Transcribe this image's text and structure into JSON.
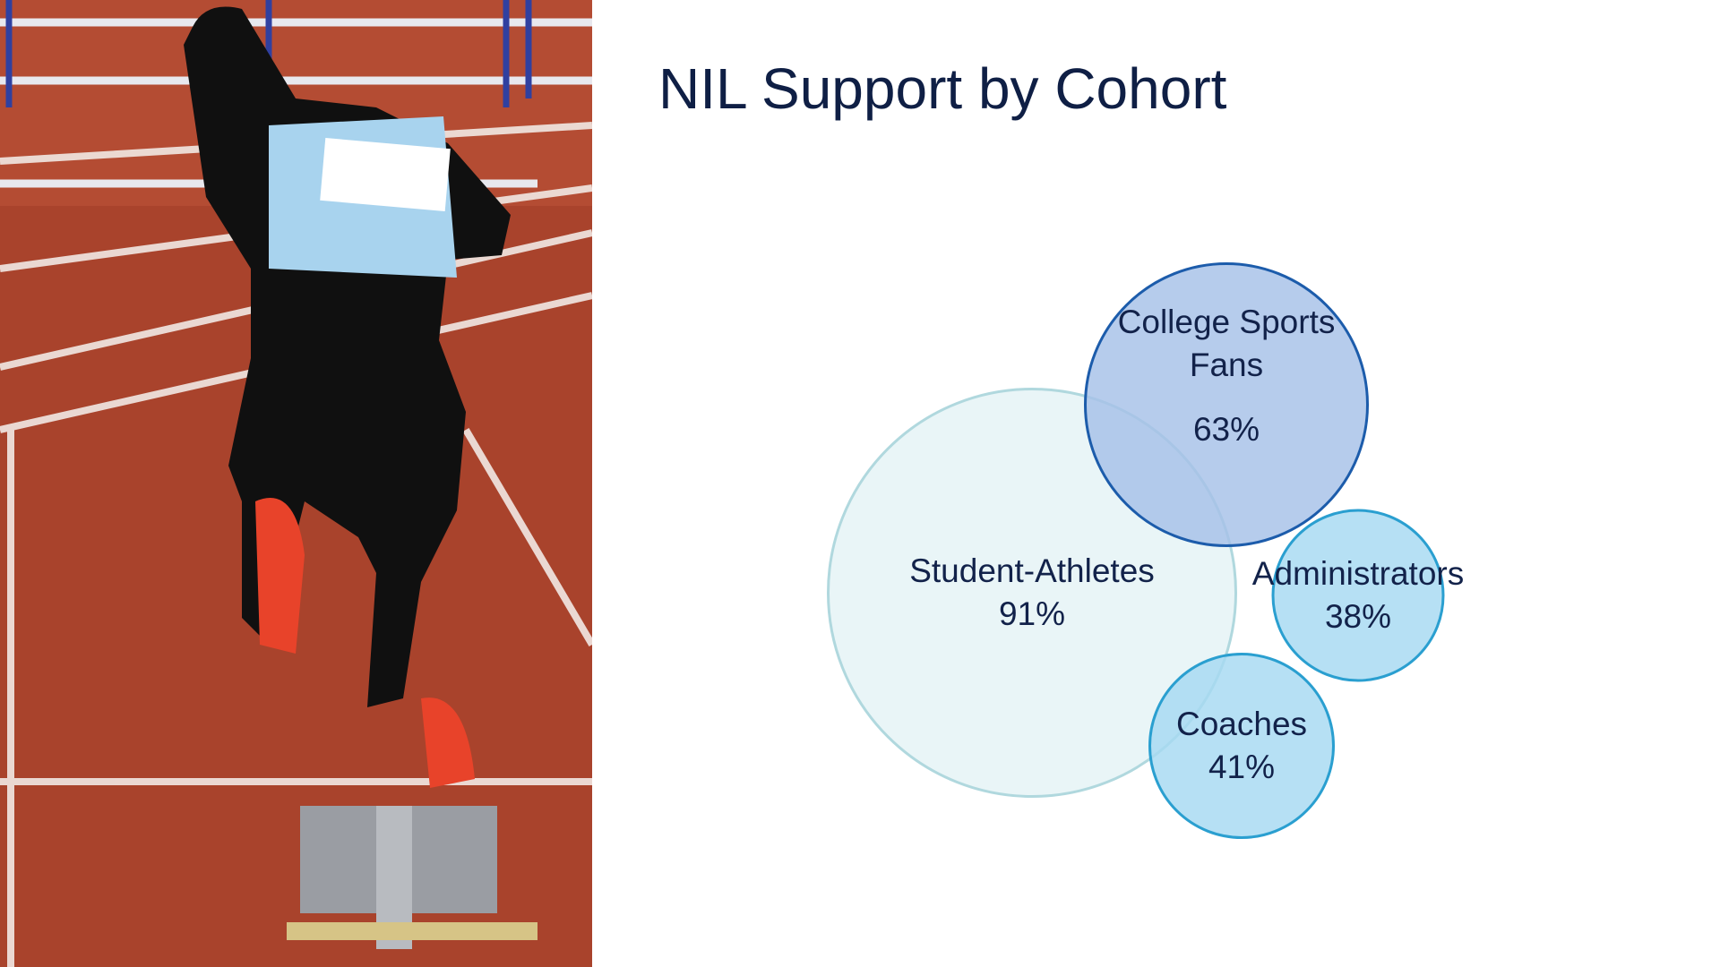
{
  "chart_data": {
    "type": "bubble",
    "title": "NIL Support by Cohort",
    "categories": [
      "Student-Athletes",
      "College Sports Fans",
      "Administrators",
      "Coaches"
    ],
    "values": [
      91,
      63,
      38,
      41
    ],
    "value_labels": [
      "91%",
      "63%",
      "38%",
      "41%"
    ],
    "colors": [
      "#e4f3f5",
      "#a6c1e8",
      "#a6d9f2",
      "#a6d9f2"
    ],
    "stroke_colors": [
      "#b0d8de",
      "#1c5cab",
      "#2a9fd0",
      "#2a9fd0"
    ]
  }
}
